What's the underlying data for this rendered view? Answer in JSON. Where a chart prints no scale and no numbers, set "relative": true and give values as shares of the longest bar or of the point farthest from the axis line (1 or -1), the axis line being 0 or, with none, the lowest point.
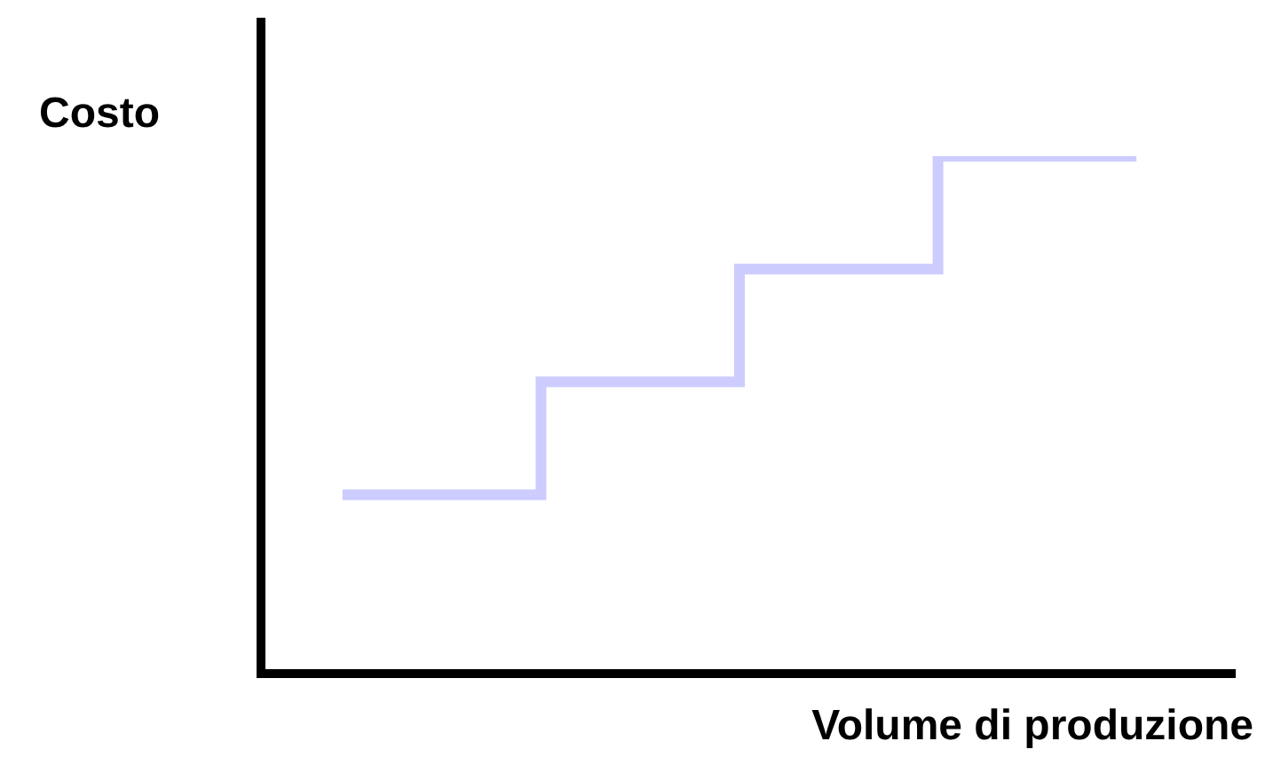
{
  "chart_data": {
    "type": "step",
    "relative": true,
    "ylabel": "Costo",
    "xlabel": "Volume di produzione",
    "categories": [
      null,
      null,
      null,
      null,
      null
    ],
    "values": [
      0.34,
      0.56,
      0.78,
      1,
      1
    ],
    "color": "#ccccff"
  }
}
